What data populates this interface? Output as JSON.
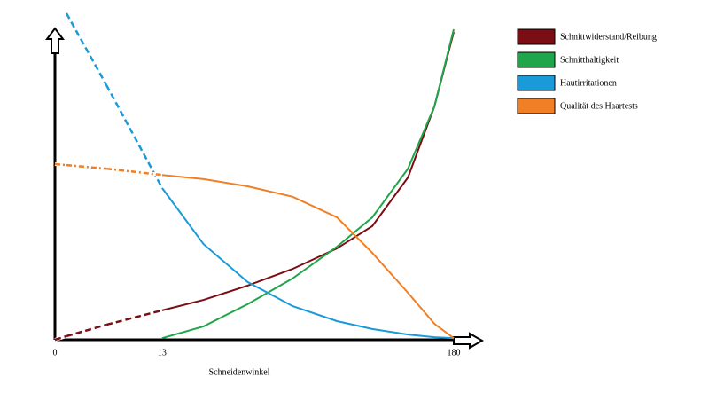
{
  "chart_data": {
    "type": "line",
    "x_label": "Schneidenwinkel",
    "x": [
      0,
      0.15,
      3,
      13,
      25,
      42,
      64,
      90,
      114,
      141,
      163,
      180
    ],
    "xlim": [
      0,
      180
    ],
    "xticks": [
      0,
      13,
      180
    ],
    "x_scale": "sqrt",
    "ylim": [
      0,
      100
    ],
    "legend": "upper right",
    "series": [
      {
        "name": "Schnittwiderstand/Reibung",
        "color": "#7b0d14",
        "values": [
          0,
          1.1,
          4.6,
          9.0,
          12.2,
          16.6,
          21.7,
          28.0,
          34.8,
          49.7,
          71.5,
          94.3
        ]
      },
      {
        "name": "Schnitthaltigkeit",
        "color": "#1fa64a",
        "values": [
          null,
          null,
          null,
          0.5,
          4.1,
          10.9,
          18.8,
          28.5,
          37.5,
          52.4,
          71.5,
          95.1
        ]
      },
      {
        "name": "Hautirritationen",
        "color": "#1a9ad8",
        "values": [
          null,
          100,
          78,
          46.5,
          29.3,
          17.7,
          10.3,
          5.7,
          3.3,
          1.6,
          0.8,
          0.5
        ]
      },
      {
        "name": "Qualität des Haartests",
        "color": "#f07f26",
        "values": [
          53.8,
          53.5,
          52.4,
          50.5,
          49.2,
          47,
          43.8,
          37.5,
          26.6,
          14.4,
          4.9,
          0.5
        ]
      }
    ]
  }
}
